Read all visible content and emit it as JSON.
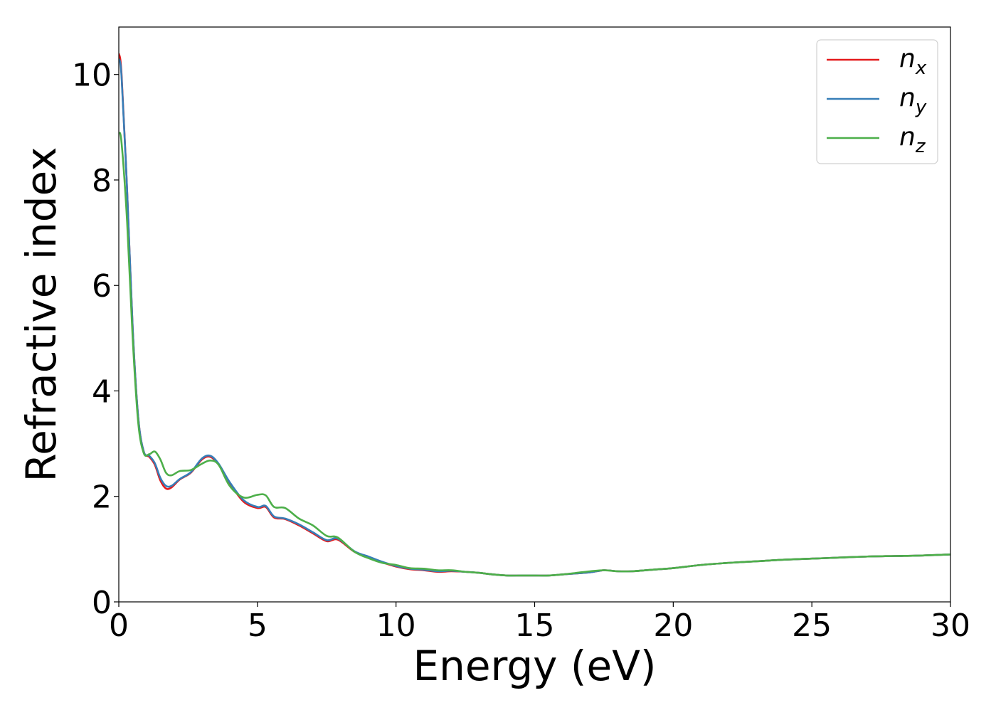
{
  "chart_data": {
    "type": "line",
    "title": "",
    "xlabel": "Energy (eV)",
    "ylabel": "Refractive index",
    "xlim": [
      0,
      30
    ],
    "ylim": [
      0,
      10.9
    ],
    "xticks": [
      0,
      5,
      10,
      15,
      20,
      25,
      30
    ],
    "yticks": [
      0,
      2,
      4,
      6,
      8,
      10
    ],
    "grid": false,
    "legend": {
      "placement": "top-right",
      "entries": [
        {
          "base": "n",
          "sub": "x",
          "color": "#e41a1c"
        },
        {
          "base": "n",
          "sub": "y",
          "color": "#377eb8"
        },
        {
          "base": "n",
          "sub": "z",
          "color": "#4daf4a"
        }
      ]
    },
    "series": [
      {
        "color": "#e41a1c",
        "x": [
          0,
          0.1,
          0.3,
          0.5,
          0.7,
          0.9,
          1.1,
          1.3,
          1.5,
          1.7,
          1.9,
          2.2,
          2.6,
          3.0,
          3.3,
          3.6,
          4.0,
          4.5,
          5.0,
          5.3,
          5.6,
          6.0,
          6.5,
          7.0,
          7.5,
          7.9,
          8.5,
          9.0,
          9.5,
          10.0,
          10.5,
          11.0,
          11.5,
          12.0,
          12.5,
          13.0,
          13.5,
          14.0,
          14.5,
          15.0,
          15.5,
          16.0,
          16.5,
          17.0,
          17.5,
          18.0,
          18.5,
          19.0,
          19.5,
          20.0,
          21.0,
          22.0,
          23.0,
          24.0,
          25.0,
          26.0,
          27.0,
          28.0,
          29.0,
          30.0
        ],
        "values": [
          10.4,
          10.0,
          7.8,
          5.2,
          3.5,
          2.85,
          2.75,
          2.6,
          2.3,
          2.15,
          2.17,
          2.32,
          2.45,
          2.7,
          2.75,
          2.6,
          2.25,
          1.9,
          1.78,
          1.8,
          1.6,
          1.57,
          1.45,
          1.3,
          1.15,
          1.18,
          0.95,
          0.85,
          0.75,
          0.67,
          0.62,
          0.6,
          0.57,
          0.58,
          0.57,
          0.55,
          0.52,
          0.5,
          0.5,
          0.5,
          0.5,
          0.52,
          0.54,
          0.56,
          0.6,
          0.58,
          0.58,
          0.6,
          0.62,
          0.64,
          0.7,
          0.74,
          0.77,
          0.8,
          0.82,
          0.84,
          0.86,
          0.87,
          0.88,
          0.9
        ]
      },
      {
        "color": "#377eb8",
        "x": [
          0,
          0.1,
          0.3,
          0.5,
          0.7,
          0.9,
          1.1,
          1.3,
          1.5,
          1.7,
          1.9,
          2.2,
          2.6,
          3.0,
          3.3,
          3.6,
          4.0,
          4.5,
          5.0,
          5.3,
          5.6,
          6.0,
          6.5,
          7.0,
          7.5,
          7.9,
          8.5,
          9.0,
          9.5,
          10.0,
          10.5,
          11.0,
          11.5,
          12.0,
          12.5,
          13.0,
          13.5,
          14.0,
          14.5,
          15.0,
          15.5,
          16.0,
          16.5,
          17.0,
          17.5,
          18.0,
          18.5,
          19.0,
          19.5,
          20.0,
          21.0,
          22.0,
          23.0,
          24.0,
          25.0,
          26.0,
          27.0,
          28.0,
          29.0,
          30.0
        ],
        "values": [
          10.3,
          9.95,
          7.8,
          5.2,
          3.5,
          2.85,
          2.77,
          2.63,
          2.35,
          2.2,
          2.2,
          2.33,
          2.46,
          2.72,
          2.77,
          2.62,
          2.27,
          1.93,
          1.8,
          1.82,
          1.62,
          1.58,
          1.47,
          1.32,
          1.17,
          1.2,
          0.96,
          0.86,
          0.76,
          0.68,
          0.63,
          0.61,
          0.58,
          0.59,
          0.57,
          0.55,
          0.52,
          0.5,
          0.5,
          0.5,
          0.5,
          0.52,
          0.54,
          0.56,
          0.6,
          0.58,
          0.58,
          0.6,
          0.62,
          0.64,
          0.7,
          0.74,
          0.77,
          0.8,
          0.82,
          0.84,
          0.86,
          0.87,
          0.88,
          0.9
        ]
      },
      {
        "color": "#4daf4a",
        "x": [
          0,
          0.1,
          0.3,
          0.5,
          0.7,
          0.9,
          1.1,
          1.3,
          1.5,
          1.7,
          1.9,
          2.2,
          2.6,
          3.0,
          3.3,
          3.6,
          4.0,
          4.5,
          5.0,
          5.3,
          5.6,
          6.0,
          6.5,
          7.0,
          7.5,
          7.9,
          8.5,
          9.0,
          9.5,
          10.0,
          10.5,
          11.0,
          11.5,
          12.0,
          12.5,
          13.0,
          13.5,
          14.0,
          14.5,
          15.0,
          15.5,
          16.0,
          16.5,
          17.0,
          17.5,
          18.0,
          18.5,
          19.0,
          19.5,
          20.0,
          21.0,
          22.0,
          23.0,
          24.0,
          25.0,
          26.0,
          27.0,
          28.0,
          29.0,
          30.0
        ],
        "values": [
          8.9,
          8.7,
          7.2,
          5.0,
          3.4,
          2.82,
          2.8,
          2.85,
          2.7,
          2.45,
          2.4,
          2.48,
          2.5,
          2.62,
          2.68,
          2.6,
          2.2,
          1.98,
          2.03,
          2.02,
          1.8,
          1.78,
          1.58,
          1.45,
          1.25,
          1.22,
          0.95,
          0.83,
          0.74,
          0.7,
          0.64,
          0.63,
          0.6,
          0.6,
          0.57,
          0.55,
          0.52,
          0.5,
          0.5,
          0.5,
          0.5,
          0.52,
          0.55,
          0.58,
          0.6,
          0.58,
          0.58,
          0.6,
          0.62,
          0.64,
          0.7,
          0.74,
          0.77,
          0.8,
          0.82,
          0.84,
          0.86,
          0.87,
          0.88,
          0.9
        ]
      }
    ]
  }
}
